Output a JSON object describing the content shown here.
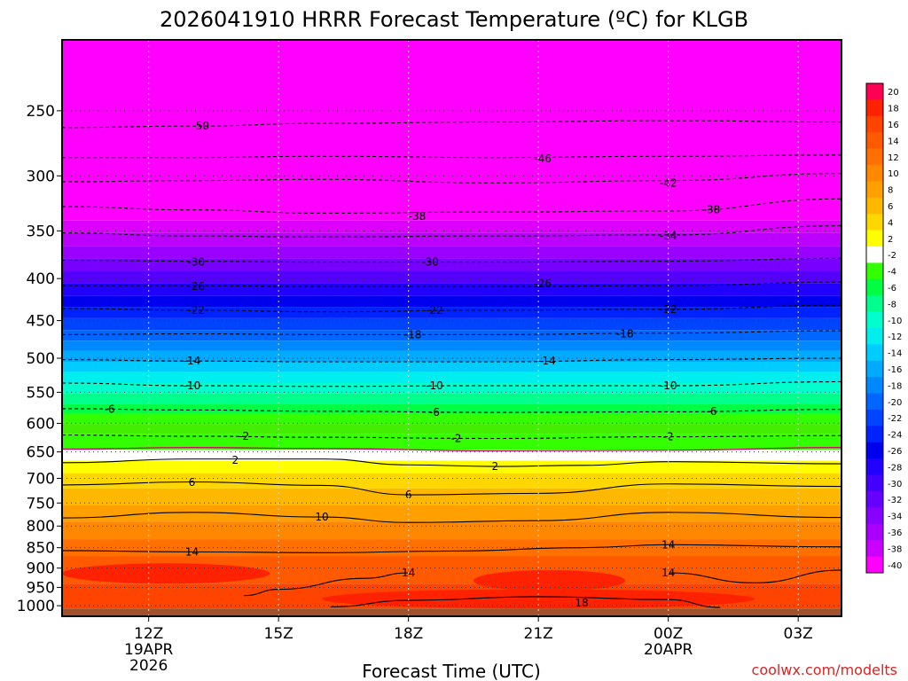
{
  "chart_data": {
    "type": "contour",
    "title": "2026041910 HRRR Forecast Temperature (ºC) for KLGB",
    "xlabel": "Forecast Time (UTC)",
    "ylabel": "",
    "credit": "coolwx.com/modelts",
    "x_ticks": [
      {
        "label": "12Z",
        "sub": [
          "19APR",
          "2026"
        ],
        "hour": 12
      },
      {
        "label": "15Z",
        "sub": [],
        "hour": 15
      },
      {
        "label": "18Z",
        "sub": [],
        "hour": 18
      },
      {
        "label": "21Z",
        "sub": [],
        "hour": 21
      },
      {
        "label": "00Z",
        "sub": [
          "20APR"
        ],
        "hour": 24
      },
      {
        "label": "03Z",
        "sub": [],
        "hour": 27
      }
    ],
    "xlim": [
      10,
      28
    ],
    "y_scale": "log",
    "y_ticks": [
      250,
      300,
      350,
      400,
      450,
      500,
      550,
      600,
      650,
      700,
      750,
      800,
      850,
      900,
      950,
      1000
    ],
    "ylim": [
      1030,
      205
    ],
    "surface_pressure": 1008,
    "colorbar": {
      "labels": [
        "20",
        "18",
        "16",
        "14",
        "12",
        "10",
        "8",
        "6",
        "4",
        "2",
        "-2",
        "-4",
        "-6",
        "-8",
        "-10",
        "-12",
        "-14",
        "-16",
        "-18",
        "-20",
        "-22",
        "-24",
        "-26",
        "-28",
        "-30",
        "-32",
        "-34",
        "-36",
        "-38",
        "-40"
      ],
      "colors": [
        "#ff0055",
        "#ff2200",
        "#ff4400",
        "#ff5a00",
        "#ff7000",
        "#ff8800",
        "#ff9f00",
        "#ffb800",
        "#ffd700",
        "#ffff00",
        "#ffffff",
        "#33ff00",
        "#00ff44",
        "#00ff8c",
        "#00ffcc",
        "#00eeee",
        "#00ccff",
        "#00aaff",
        "#0088ff",
        "#0066ff",
        "#0044ff",
        "#0022ff",
        "#0000ee",
        "#2200ff",
        "#4400ff",
        "#6600ff",
        "#8800ff",
        "#aa00ff",
        "#cc00ff",
        "#ff00ff"
      ]
    },
    "bands": [
      {
        "from": 205,
        "to": 340,
        "color": "#ff00ff"
      },
      {
        "from": 340,
        "to": 352,
        "color": "#dd00ff"
      },
      {
        "from": 352,
        "to": 365,
        "color": "#bb00ff"
      },
      {
        "from": 365,
        "to": 378,
        "color": "#9900ff"
      },
      {
        "from": 378,
        "to": 392,
        "color": "#7700ff"
      },
      {
        "from": 392,
        "to": 405,
        "color": "#5500ff"
      },
      {
        "from": 405,
        "to": 420,
        "color": "#2200ff"
      },
      {
        "from": 420,
        "to": 433,
        "color": "#0000ee"
      },
      {
        "from": 433,
        "to": 447,
        "color": "#0022ff"
      },
      {
        "from": 447,
        "to": 462,
        "color": "#0044ff"
      },
      {
        "from": 462,
        "to": 476,
        "color": "#0066ff"
      },
      {
        "from": 476,
        "to": 490,
        "color": "#0088ff"
      },
      {
        "from": 490,
        "to": 505,
        "color": "#00aaff"
      },
      {
        "from": 505,
        "to": 520,
        "color": "#00ccff"
      },
      {
        "from": 520,
        "to": 536,
        "color": "#00eeee"
      },
      {
        "from": 536,
        "to": 552,
        "color": "#00ffcc"
      },
      {
        "from": 552,
        "to": 568,
        "color": "#00ff8c"
      },
      {
        "from": 568,
        "to": 584,
        "color": "#00ff44"
      },
      {
        "from": 584,
        "to": 601,
        "color": "#33ff00"
      },
      {
        "from": 601,
        "to": 618,
        "color": "#44ee00"
      },
      {
        "from": 618,
        "to": 646,
        "color": "#33ff00"
      },
      {
        "from": 646,
        "to": 666,
        "color": "#ffffff"
      },
      {
        "from": 666,
        "to": 690,
        "color": "#ffff00"
      },
      {
        "from": 690,
        "to": 720,
        "color": "#ffd700"
      },
      {
        "from": 720,
        "to": 755,
        "color": "#ffb800"
      },
      {
        "from": 755,
        "to": 790,
        "color": "#ff9f00"
      },
      {
        "from": 790,
        "to": 830,
        "color": "#ff8800"
      },
      {
        "from": 830,
        "to": 870,
        "color": "#ff7000"
      },
      {
        "from": 870,
        "to": 940,
        "color": "#ff5a00"
      },
      {
        "from": 940,
        "to": 1008,
        "color": "#ff4400"
      }
    ],
    "hot_patches": [
      {
        "x0": 10,
        "x1": 14.8,
        "p0": 888,
        "p1": 940,
        "color": "#ff2200"
      },
      {
        "x0": 16,
        "x1": 26,
        "p0": 955,
        "p1": 1008,
        "color": "#ff2200"
      },
      {
        "x0": 19.5,
        "x1": 23,
        "p0": 905,
        "p1": 960,
        "color": "#ff2200"
      }
    ],
    "contours": [
      {
        "value": -50,
        "dashed": true,
        "points": [
          [
            10,
            262
          ],
          [
            13,
            261
          ],
          [
            16,
            259
          ],
          [
            20,
            258
          ],
          [
            24,
            257
          ],
          [
            28,
            258
          ]
        ],
        "labels": [
          [
            13.2,
            261
          ]
        ]
      },
      {
        "value": -46,
        "dashed": true,
        "points": [
          [
            10,
            285
          ],
          [
            13,
            285
          ],
          [
            16,
            284
          ],
          [
            20,
            285
          ],
          [
            24,
            284
          ],
          [
            28,
            283
          ]
        ],
        "labels": [
          [
            21.1,
            286
          ]
        ]
      },
      {
        "value": -42,
        "dashed": true,
        "points": [
          [
            10,
            305
          ],
          [
            13,
            304
          ],
          [
            16,
            303
          ],
          [
            20,
            306
          ],
          [
            24,
            304
          ],
          [
            28,
            298
          ]
        ],
        "labels": [
          [
            24,
            306
          ]
        ]
      },
      {
        "value": -38,
        "dashed": true,
        "points": [
          [
            10,
            327
          ],
          [
            13,
            330
          ],
          [
            16,
            333
          ],
          [
            20,
            332
          ],
          [
            24,
            331
          ],
          [
            28,
            320
          ]
        ],
        "labels": [
          [
            18.2,
            336
          ],
          [
            25,
            330
          ]
        ]
      },
      {
        "value": -34,
        "dashed": true,
        "points": [
          [
            10,
            352
          ],
          [
            13,
            355
          ],
          [
            16,
            356
          ],
          [
            20,
            355
          ],
          [
            24,
            354
          ],
          [
            28,
            345
          ]
        ],
        "labels": [
          [
            24,
            355
          ]
        ]
      },
      {
        "value": -30,
        "dashed": true,
        "points": [
          [
            10,
            380
          ],
          [
            13,
            381
          ],
          [
            16,
            382
          ],
          [
            20,
            382
          ],
          [
            24,
            381
          ],
          [
            28,
            378
          ]
        ],
        "labels": [
          [
            13.1,
            382
          ],
          [
            18.5,
            382
          ]
        ]
      },
      {
        "value": -26,
        "dashed": true,
        "points": [
          [
            10,
            408
          ],
          [
            13,
            408
          ],
          [
            16,
            409
          ],
          [
            20,
            409
          ],
          [
            24,
            408
          ],
          [
            28,
            404
          ]
        ],
        "labels": [
          [
            13.1,
            409
          ],
          [
            21.1,
            406
          ]
        ]
      },
      {
        "value": -22,
        "dashed": true,
        "points": [
          [
            10,
            435
          ],
          [
            13,
            437
          ],
          [
            16,
            439
          ],
          [
            20,
            437
          ],
          [
            24,
            436
          ],
          [
            28,
            431
          ]
        ],
        "labels": [
          [
            13.1,
            437
          ],
          [
            18.6,
            437
          ],
          [
            24,
            436
          ]
        ]
      },
      {
        "value": -18,
        "dashed": true,
        "points": [
          [
            10,
            468
          ],
          [
            13,
            467
          ],
          [
            16,
            468
          ],
          [
            20,
            468
          ],
          [
            24,
            466
          ],
          [
            28,
            463
          ]
        ],
        "labels": [
          [
            18.1,
            468
          ],
          [
            23,
            467
          ]
        ]
      },
      {
        "value": -14,
        "dashed": true,
        "points": [
          [
            10,
            502
          ],
          [
            13,
            504
          ],
          [
            16,
            505
          ],
          [
            20,
            505
          ],
          [
            24,
            502
          ],
          [
            28,
            500
          ]
        ],
        "labels": [
          [
            13,
            504
          ],
          [
            21.2,
            504
          ]
        ]
      },
      {
        "value": -10,
        "dashed": true,
        "points": [
          [
            10,
            536
          ],
          [
            13,
            540
          ],
          [
            16,
            541
          ],
          [
            20,
            540
          ],
          [
            24,
            540
          ],
          [
            28,
            534
          ]
        ],
        "labels": [
          [
            13,
            540
          ],
          [
            18.6,
            540
          ],
          [
            24,
            540
          ]
        ]
      },
      {
        "value": -6,
        "dashed": true,
        "points": [
          [
            10,
            576
          ],
          [
            13,
            578
          ],
          [
            16,
            580
          ],
          [
            20,
            582
          ],
          [
            24,
            581
          ],
          [
            28,
            577
          ]
        ],
        "labels": [
          [
            11.1,
            577
          ],
          [
            18.6,
            582
          ],
          [
            25,
            580
          ]
        ]
      },
      {
        "value": -2,
        "dashed": true,
        "points": [
          [
            10,
            620
          ],
          [
            13,
            622
          ],
          [
            16,
            624
          ],
          [
            20,
            626
          ],
          [
            24,
            623
          ],
          [
            28,
            621
          ]
        ],
        "labels": [
          [
            14.2,
            622
          ],
          [
            19.1,
            626
          ],
          [
            24,
            623
          ]
        ]
      },
      {
        "value": 0,
        "dashed": false,
        "color": "#d0006f",
        "points": [
          [
            10,
            645
          ],
          [
            13,
            642
          ],
          [
            16,
            644
          ],
          [
            20,
            648
          ],
          [
            24,
            647
          ],
          [
            28,
            642
          ]
        ],
        "labels": []
      },
      {
        "value": 2,
        "dashed": false,
        "points": [
          [
            10,
            670
          ],
          [
            13,
            663
          ],
          [
            16,
            663
          ],
          [
            18,
            674
          ],
          [
            20,
            677
          ],
          [
            22,
            675
          ],
          [
            24,
            668
          ],
          [
            28,
            672
          ]
        ],
        "labels": [
          [
            14,
            665
          ],
          [
            20,
            677
          ]
        ]
      },
      {
        "value": 6,
        "dashed": false,
        "points": [
          [
            10,
            713
          ],
          [
            13,
            707
          ],
          [
            16,
            714
          ],
          [
            18,
            733
          ],
          [
            21,
            730
          ],
          [
            24,
            711
          ],
          [
            28,
            716
          ]
        ],
        "labels": [
          [
            13,
            708
          ],
          [
            18,
            733
          ]
        ]
      },
      {
        "value": 10,
        "dashed": false,
        "points": [
          [
            10,
            782
          ],
          [
            13,
            770
          ],
          [
            16,
            780
          ],
          [
            18,
            792
          ],
          [
            21,
            788
          ],
          [
            24,
            770
          ],
          [
            28,
            781
          ]
        ],
        "labels": [
          [
            16,
            780
          ]
        ]
      },
      {
        "value": 14,
        "dashed": false,
        "points": [
          [
            10,
            857
          ],
          [
            13,
            860
          ],
          [
            16,
            862
          ],
          [
            19,
            858
          ],
          [
            22,
            850
          ],
          [
            24,
            843
          ],
          [
            28,
            848
          ]
        ],
        "labels": [
          [
            13,
            860
          ],
          [
            24,
            843
          ]
        ]
      },
      {
        "value": 14,
        "dashed": false,
        "points": [
          [
            14.2,
            972
          ],
          [
            15,
            955
          ],
          [
            17,
            926
          ],
          [
            18,
            912
          ]
        ],
        "labels": [
          [
            18,
            912
          ]
        ]
      },
      {
        "value": 14,
        "dashed": false,
        "points": [
          [
            24,
            912
          ],
          [
            26,
            938
          ],
          [
            28,
            905
          ]
        ],
        "labels": [
          [
            24,
            912
          ]
        ]
      },
      {
        "value": 18,
        "dashed": false,
        "points": [
          [
            16.2,
            1003
          ],
          [
            18,
            985
          ],
          [
            21,
            975
          ],
          [
            24,
            983
          ],
          [
            25.2,
            1005
          ]
        ],
        "labels": [
          [
            22,
            992
          ]
        ]
      }
    ]
  }
}
